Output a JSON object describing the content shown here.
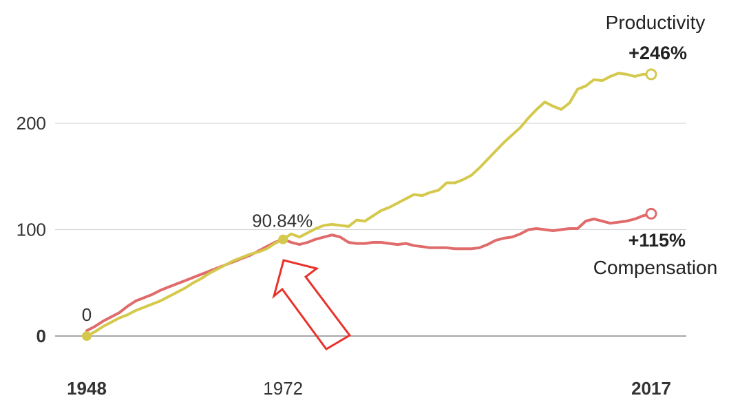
{
  "chart_data": {
    "type": "line",
    "x_range": [
      1948,
      2017
    ],
    "ylim": [
      0,
      260
    ],
    "y_ticks": [
      {
        "value": 0,
        "label": "0",
        "bold": true
      },
      {
        "value": 100,
        "label": "100",
        "bold": false
      },
      {
        "value": 200,
        "label": "200",
        "bold": false
      }
    ],
    "x_ticks": [
      {
        "value": 1948,
        "label": "1948",
        "bold": true
      },
      {
        "value": 1972,
        "label": "1972",
        "bold": false
      },
      {
        "value": 2017,
        "label": "2017",
        "bold": true
      }
    ],
    "grid": true,
    "series": [
      {
        "name": "Productivity",
        "change_label": "+246%",
        "color": "#d4c94c",
        "x": [
          1948,
          1949,
          1950,
          1951,
          1952,
          1953,
          1954,
          1955,
          1956,
          1957,
          1958,
          1959,
          1960,
          1961,
          1962,
          1963,
          1964,
          1965,
          1966,
          1967,
          1968,
          1969,
          1970,
          1971,
          1972,
          1973,
          1974,
          1975,
          1976,
          1977,
          1978,
          1979,
          1980,
          1981,
          1982,
          1983,
          1984,
          1985,
          1986,
          1987,
          1988,
          1989,
          1990,
          1991,
          1992,
          1993,
          1994,
          1995,
          1996,
          1997,
          1998,
          1999,
          2000,
          2001,
          2002,
          2003,
          2004,
          2005,
          2006,
          2007,
          2008,
          2009,
          2010,
          2011,
          2012,
          2013,
          2014,
          2015,
          2016,
          2017
        ],
        "y": [
          0,
          4,
          9,
          13,
          17,
          20,
          24,
          27,
          30,
          33,
          37,
          41,
          45,
          50,
          54,
          59,
          63,
          67,
          71,
          74,
          77,
          79,
          82,
          87,
          90.84,
          96,
          93,
          97,
          101,
          104,
          105,
          104,
          103,
          109,
          108,
          113,
          118,
          121,
          125,
          129,
          133,
          132,
          135,
          137,
          144,
          144,
          147,
          151,
          158,
          166,
          174,
          182,
          189,
          196,
          205,
          213,
          220,
          216,
          213,
          219,
          232,
          235,
          241,
          240,
          244,
          247,
          246,
          244,
          246,
          246
        ]
      },
      {
        "name": "Compensation",
        "change_label": "+115%",
        "color": "#e06b6b",
        "x": [
          1948,
          1949,
          1950,
          1951,
          1952,
          1953,
          1954,
          1955,
          1956,
          1957,
          1958,
          1959,
          1960,
          1961,
          1962,
          1963,
          1964,
          1965,
          1966,
          1967,
          1968,
          1969,
          1970,
          1971,
          1972,
          1973,
          1974,
          1975,
          1976,
          1977,
          1978,
          1979,
          1980,
          1981,
          1982,
          1983,
          1984,
          1985,
          1986,
          1987,
          1988,
          1989,
          1990,
          1991,
          1992,
          1993,
          1994,
          1995,
          1996,
          1997,
          1998,
          1999,
          2000,
          2001,
          2002,
          2003,
          2004,
          2005,
          2006,
          2007,
          2008,
          2009,
          2010,
          2011,
          2012,
          2013,
          2014,
          2015,
          2016,
          2017
        ],
        "y": [
          5,
          9,
          14,
          18,
          22,
          28,
          33,
          36,
          39,
          43,
          46,
          49,
          52,
          55,
          58,
          61,
          64,
          67,
          70,
          73,
          76,
          80,
          84,
          88,
          91,
          88,
          86,
          88,
          91,
          93,
          95,
          93,
          88,
          87,
          87,
          88,
          88,
          87,
          86,
          87,
          85,
          84,
          83,
          83,
          83,
          82,
          82,
          82,
          83,
          86,
          90,
          92,
          93,
          96,
          100,
          101,
          100,
          99,
          100,
          101,
          101,
          108,
          110,
          108,
          106,
          107,
          108,
          110,
          113,
          115
        ]
      }
    ],
    "annotations": [
      {
        "x": 1948,
        "y": 0,
        "label": "0"
      },
      {
        "x": 1972,
        "y": 90.84,
        "label": "90.84%"
      }
    ],
    "arrow_color": "#e8322a"
  }
}
